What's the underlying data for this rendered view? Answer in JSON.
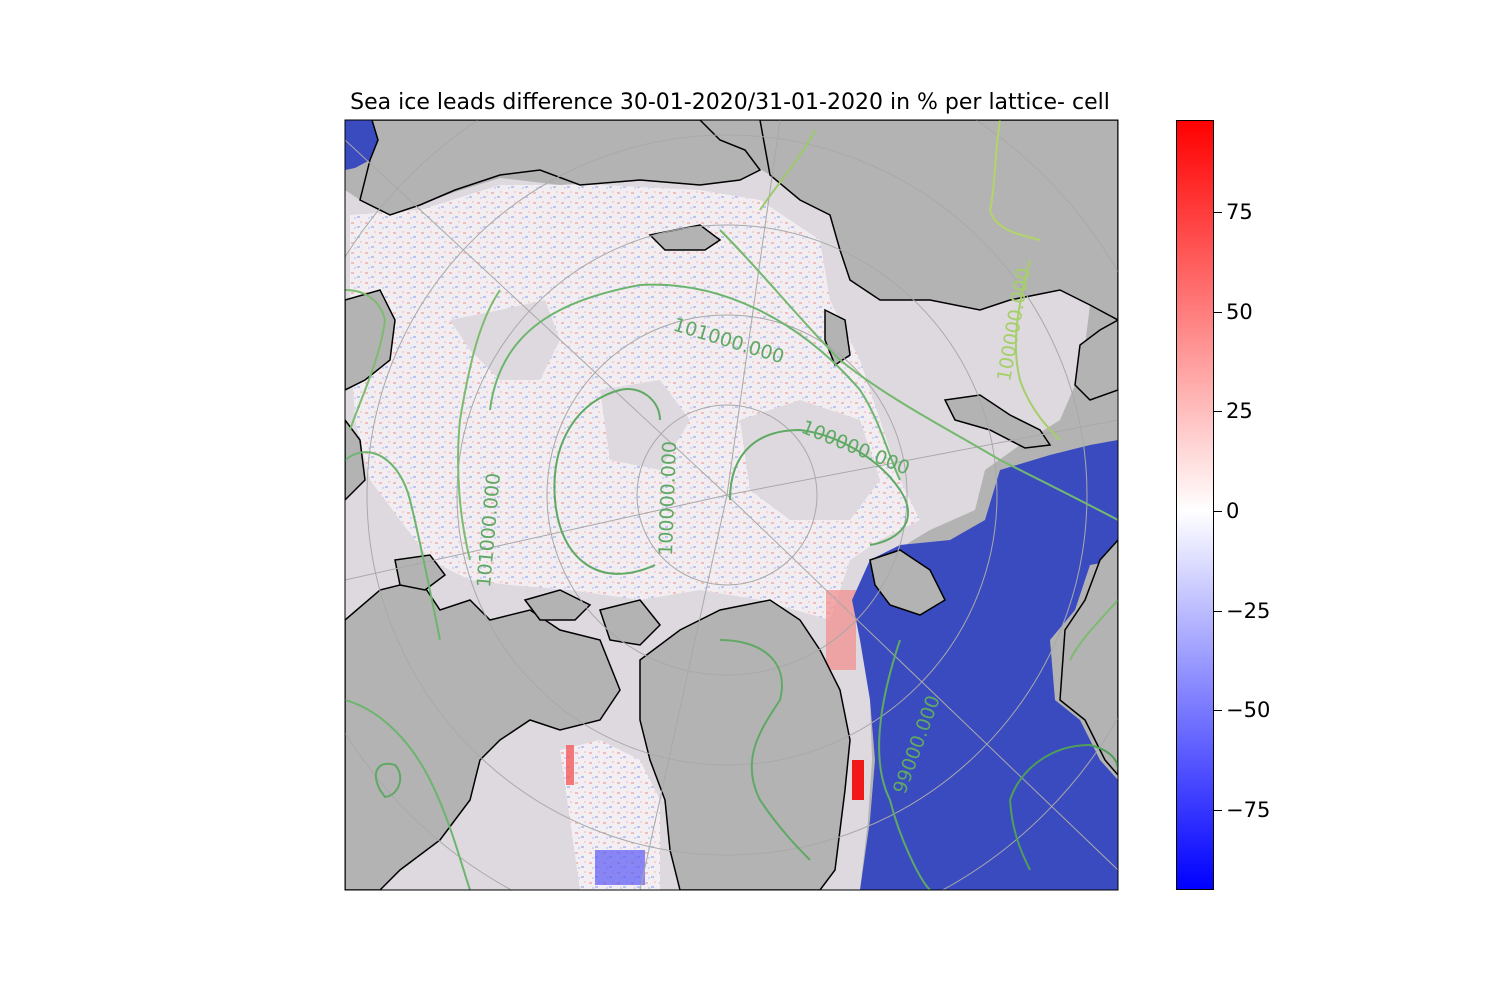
{
  "title": "Sea ice leads difference 30-01-2020/31-01-2020 in % per lattice- cell",
  "colorbar": {
    "min": -95,
    "max": 98,
    "ticks": [
      {
        "value": 75,
        "label": "75"
      },
      {
        "value": 50,
        "label": "50"
      },
      {
        "value": 25,
        "label": "25"
      },
      {
        "value": 0,
        "label": "0"
      },
      {
        "value": -25,
        "label": "−25"
      },
      {
        "value": -50,
        "label": "−50"
      },
      {
        "value": -75,
        "label": "−75"
      }
    ],
    "colors": {
      "low": "#0000ff",
      "mid": "#ffffff",
      "high": "#ff0000"
    }
  },
  "contour_labels": [
    {
      "text": "101000.000"
    },
    {
      "text": "100000.000"
    },
    {
      "text": "100000.000"
    },
    {
      "text": "101000.000"
    },
    {
      "text": "99000.000"
    },
    {
      "text": "100000.000"
    }
  ],
  "colors": {
    "land": "#b3b3b3",
    "sea_ice": "#ded9df",
    "open_ocean": "#3a4bc0",
    "coastline": "#000000",
    "graticule": "#a9a9a9",
    "contour_low": "#4f9e5a",
    "contour_high": "#a9d06a"
  }
}
